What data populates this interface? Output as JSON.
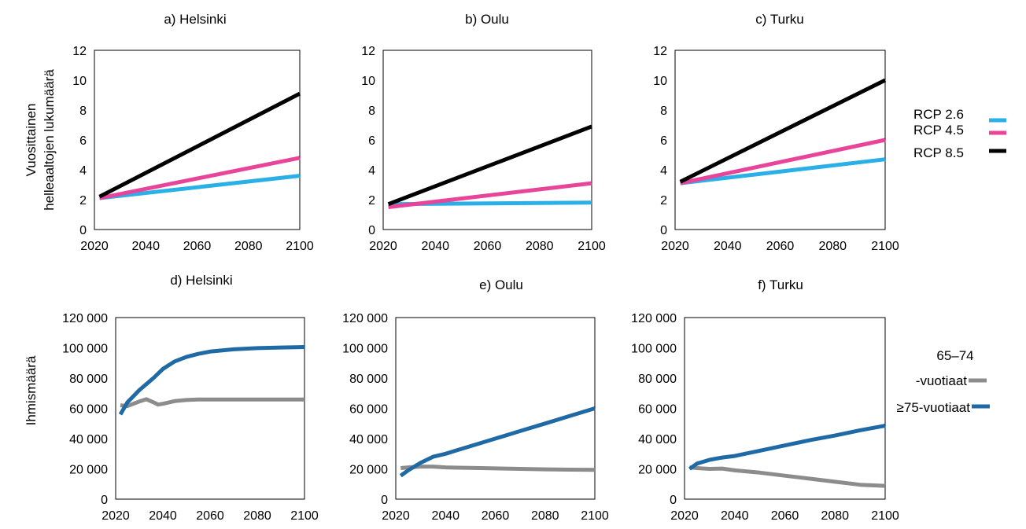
{
  "top_ylabel_line1": "Vuosittainen",
  "top_ylabel_line2": "helleaaltojen lukumäärä",
  "bottom_ylabel": "Ihmismäärä",
  "legend_rcp": [
    {
      "label": "RCP 2.6",
      "color": "#2AB0E6"
    },
    {
      "label": "RCP 4.5",
      "color": "#E8449A"
    },
    {
      "label": "RCP 8.5",
      "color": "#000000"
    }
  ],
  "legend_age": [
    {
      "label_line1": "65–74",
      "label_line2": "-vuotiaat",
      "color": "#8C8C8C"
    },
    {
      "label_line1": "≥75-vuotiaat",
      "label_line2": "",
      "color": "#1F6AA5"
    }
  ],
  "chart_data": [
    {
      "type": "line",
      "title": "a) Helsinki",
      "x": [
        2022,
        2100
      ],
      "xlim": [
        2020,
        2100
      ],
      "xticks": [
        "2020",
        "2040",
        "2060",
        "2080",
        "2100"
      ],
      "ylim": [
        0,
        12
      ],
      "yticks": [
        "0",
        "2",
        "4",
        "6",
        "8",
        "10",
        "12"
      ],
      "grid": false,
      "series": [
        {
          "name": "RCP 2.6",
          "color": "#2AB0E6",
          "values": [
            2.1,
            3.6
          ]
        },
        {
          "name": "RCP 4.5",
          "color": "#E8449A",
          "values": [
            2.1,
            4.8
          ]
        },
        {
          "name": "RCP 8.5",
          "color": "#000000",
          "values": [
            2.2,
            9.1
          ]
        }
      ]
    },
    {
      "type": "line",
      "title": "b) Oulu",
      "x": [
        2022,
        2100
      ],
      "xlim": [
        2020,
        2100
      ],
      "xticks": [
        "2020",
        "2040",
        "2060",
        "2080",
        "2100"
      ],
      "ylim": [
        0,
        12
      ],
      "yticks": [
        "0",
        "2",
        "4",
        "6",
        "8",
        "10",
        "12"
      ],
      "grid": false,
      "series": [
        {
          "name": "RCP 2.6",
          "color": "#2AB0E6",
          "values": [
            1.7,
            1.8
          ]
        },
        {
          "name": "RCP 4.5",
          "color": "#E8449A",
          "values": [
            1.5,
            3.1
          ]
        },
        {
          "name": "RCP 8.5",
          "color": "#000000",
          "values": [
            1.7,
            6.9
          ]
        }
      ]
    },
    {
      "type": "line",
      "title": "c) Turku",
      "x": [
        2022,
        2100
      ],
      "xlim": [
        2020,
        2100
      ],
      "xticks": [
        "2020",
        "2040",
        "2060",
        "2080",
        "2100"
      ],
      "ylim": [
        0,
        12
      ],
      "yticks": [
        "0",
        "2",
        "4",
        "6",
        "8",
        "10",
        "12"
      ],
      "grid": false,
      "series": [
        {
          "name": "RCP 2.6",
          "color": "#2AB0E6",
          "values": [
            3.1,
            4.7
          ]
        },
        {
          "name": "RCP 4.5",
          "color": "#E8449A",
          "values": [
            3.1,
            6.0
          ]
        },
        {
          "name": "RCP 8.5",
          "color": "#000000",
          "values": [
            3.2,
            10.0
          ]
        }
      ]
    },
    {
      "type": "line",
      "title": "d) Helsinki",
      "x": [
        2022,
        2025,
        2030,
        2033,
        2036,
        2038,
        2040,
        2045,
        2050,
        2055,
        2060,
        2070,
        2080,
        2090,
        2100
      ],
      "xlim": [
        2020,
        2100
      ],
      "xticks": [
        "2020",
        "2040",
        "2060",
        "2080",
        "2100"
      ],
      "ylim": [
        0,
        120000
      ],
      "yticks": [
        "0",
        "20 000",
        "40 000",
        "60 000",
        "80 000",
        "100 000",
        "120 000"
      ],
      "grid": false,
      "series": [
        {
          "name": "65–74 -vuotiaat",
          "color": "#8C8C8C",
          "values": [
            62000,
            61500,
            64500,
            66000,
            64000,
            62500,
            63000,
            64800,
            65500,
            65800,
            65800,
            65800,
            65800,
            65800,
            65800
          ]
        },
        {
          "name": "≥75-vuotiaat",
          "color": "#1F6AA5",
          "values": [
            56000,
            64000,
            72000,
            76000,
            80000,
            83000,
            86000,
            91000,
            94000,
            96000,
            97500,
            99000,
            99800,
            100200,
            100500
          ]
        }
      ]
    },
    {
      "type": "line",
      "title": "e) Oulu",
      "x": [
        2022,
        2025,
        2030,
        2035,
        2040,
        2045,
        2050,
        2060,
        2070,
        2080,
        2090,
        2100
      ],
      "xlim": [
        2020,
        2100
      ],
      "xticks": [
        "2020",
        "2040",
        "2060",
        "2080",
        "2100"
      ],
      "ylim": [
        0,
        120000
      ],
      "yticks": [
        "0",
        "20 000",
        "40 000",
        "60 000",
        "80 000",
        "100 000",
        "120 000"
      ],
      "grid": false,
      "series": [
        {
          "name": "65–74 -vuotiaat",
          "color": "#8C8C8C",
          "values": [
            20500,
            21000,
            21500,
            21500,
            21000,
            20800,
            20600,
            20300,
            20000,
            19700,
            19500,
            19300
          ]
        },
        {
          "name": "≥75-vuotiaat",
          "color": "#1F6AA5",
          "values": [
            15500,
            19000,
            24000,
            28000,
            30000,
            32500,
            35000,
            40000,
            45000,
            50000,
            55000,
            60000
          ]
        }
      ]
    },
    {
      "type": "line",
      "title": "f) Turku",
      "x": [
        2022,
        2025,
        2030,
        2035,
        2040,
        2050,
        2060,
        2070,
        2080,
        2090,
        2100
      ],
      "xlim": [
        2020,
        2100
      ],
      "xticks": [
        "2020",
        "2040",
        "2060",
        "2080",
        "2100"
      ],
      "ylim": [
        0,
        120000
      ],
      "yticks": [
        "0",
        "20 000",
        "40 000",
        "60 000",
        "80 000",
        "100 000",
        "120 000"
      ],
      "grid": false,
      "series": [
        {
          "name": "65–74 -vuotiaat",
          "color": "#8C8C8C",
          "values": [
            21000,
            20500,
            20000,
            20200,
            19000,
            17500,
            15500,
            13500,
            11500,
            9500,
            8800
          ]
        },
        {
          "name": "≥75-vuotiaat",
          "color": "#1F6AA5",
          "values": [
            20000,
            23500,
            26000,
            27500,
            28500,
            32000,
            35500,
            39000,
            42000,
            45500,
            48500
          ]
        }
      ]
    }
  ]
}
